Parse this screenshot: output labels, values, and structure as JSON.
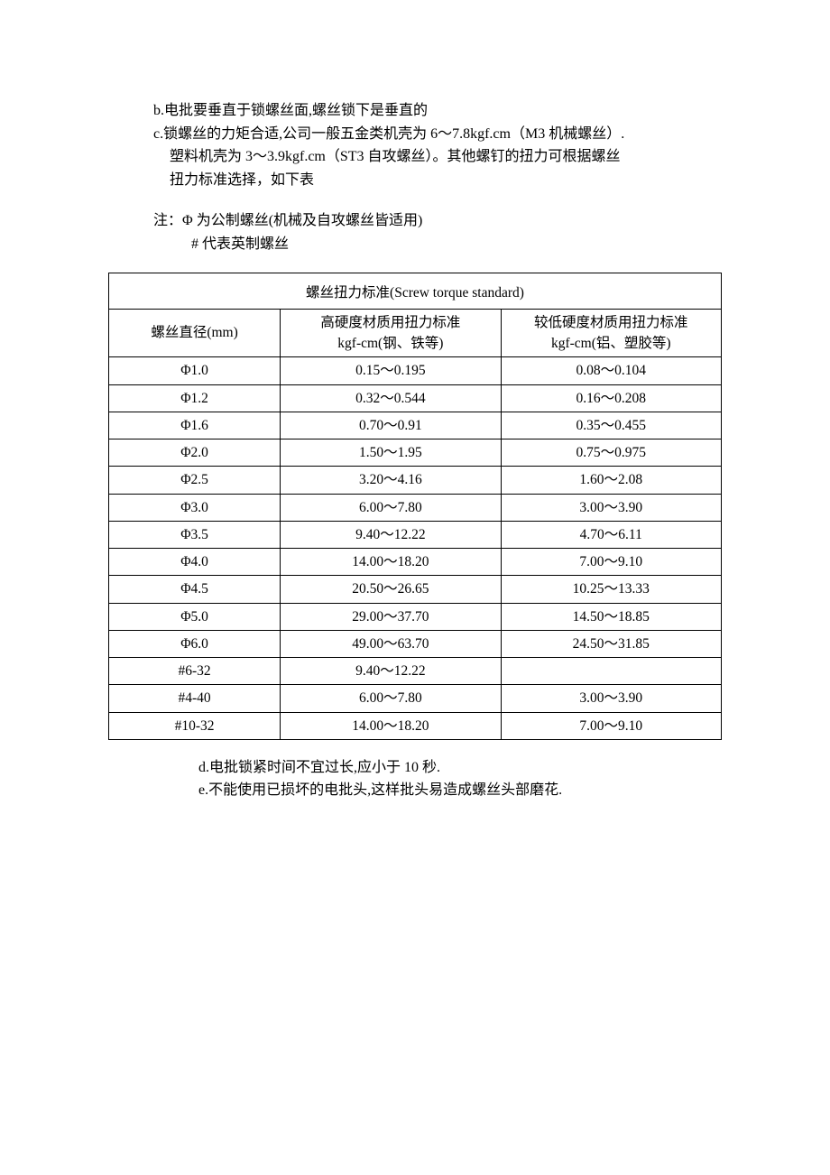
{
  "paragraphs": {
    "b": "b.电批要垂直于锁螺丝面,螺丝锁下是垂直的",
    "c1": "c.锁螺丝的力矩合适,公司一般五金类机壳为 6～7.8kgf.cm（M3 机械螺丝）.",
    "c2": "塑料机壳为 3～3.9kgf.cm（ST3 自攻螺丝）。其他螺钉的扭力可根据螺丝",
    "c3": "扭力标准选择，如下表"
  },
  "note": {
    "line1": "注：Φ  为公制螺丝(机械及自攻螺丝皆适用)",
    "line2": "#   代表英制螺丝"
  },
  "table": {
    "title": "螺丝扭力标准(Screw torque standard)",
    "headers": {
      "col1": "螺丝直径(mm)",
      "col2_l1": "高硬度材质用扭力标准",
      "col2_l2": "kgf-cm(钢、铁等)",
      "col3_l1": "较低硬度材质用扭力标准",
      "col3_l2": "kgf-cm(铝、塑胶等)"
    },
    "rows": [
      {
        "d": "Φ1.0",
        "h": "0.15～0.195",
        "l": "0.08～0.104"
      },
      {
        "d": "Φ1.2",
        "h": "0.32～0.544",
        "l": "0.16～0.208"
      },
      {
        "d": "Φ1.6",
        "h": "0.70～0.91",
        "l": "0.35～0.455"
      },
      {
        "d": "Φ2.0",
        "h": "1.50～1.95",
        "l": "0.75～0.975"
      },
      {
        "d": "Φ2.5",
        "h": "3.20～4.16",
        "l": "1.60～2.08"
      },
      {
        "d": "Φ3.0",
        "h": "6.00～7.80",
        "l": "3.00～3.90"
      },
      {
        "d": "Φ3.5",
        "h": "9.40～12.22",
        "l": "4.70～6.11"
      },
      {
        "d": "Φ4.0",
        "h": "14.00～18.20",
        "l": "7.00～9.10"
      },
      {
        "d": "Φ4.5",
        "h": "20.50～26.65",
        "l": "10.25～13.33"
      },
      {
        "d": "Φ5.0",
        "h": "29.00～37.70",
        "l": "14.50～18.85"
      },
      {
        "d": "Φ6.0",
        "h": "49.00～63.70",
        "l": "24.50～31.85"
      },
      {
        "d": "#6-32",
        "h": "9.40～12.22",
        "l": ""
      },
      {
        "d": "#4-40",
        "h": "6.00～7.80",
        "l": "3.00～3.90"
      },
      {
        "d": "#10-32",
        "h": "14.00～18.20",
        "l": "7.00～9.10"
      }
    ]
  },
  "below": {
    "d": "d.电批锁紧时间不宜过长,应小于 10 秒.",
    "e": "e.不能使用已损坏的电批头,这样批头易造成螺丝头部磨花."
  },
  "style": {
    "text_color": "#000000",
    "background_color": "#ffffff",
    "border_color": "#000000",
    "body_fontsize": 16,
    "table_fontsize": 15.5,
    "font_family": "SimSun / 宋体 / serif"
  }
}
